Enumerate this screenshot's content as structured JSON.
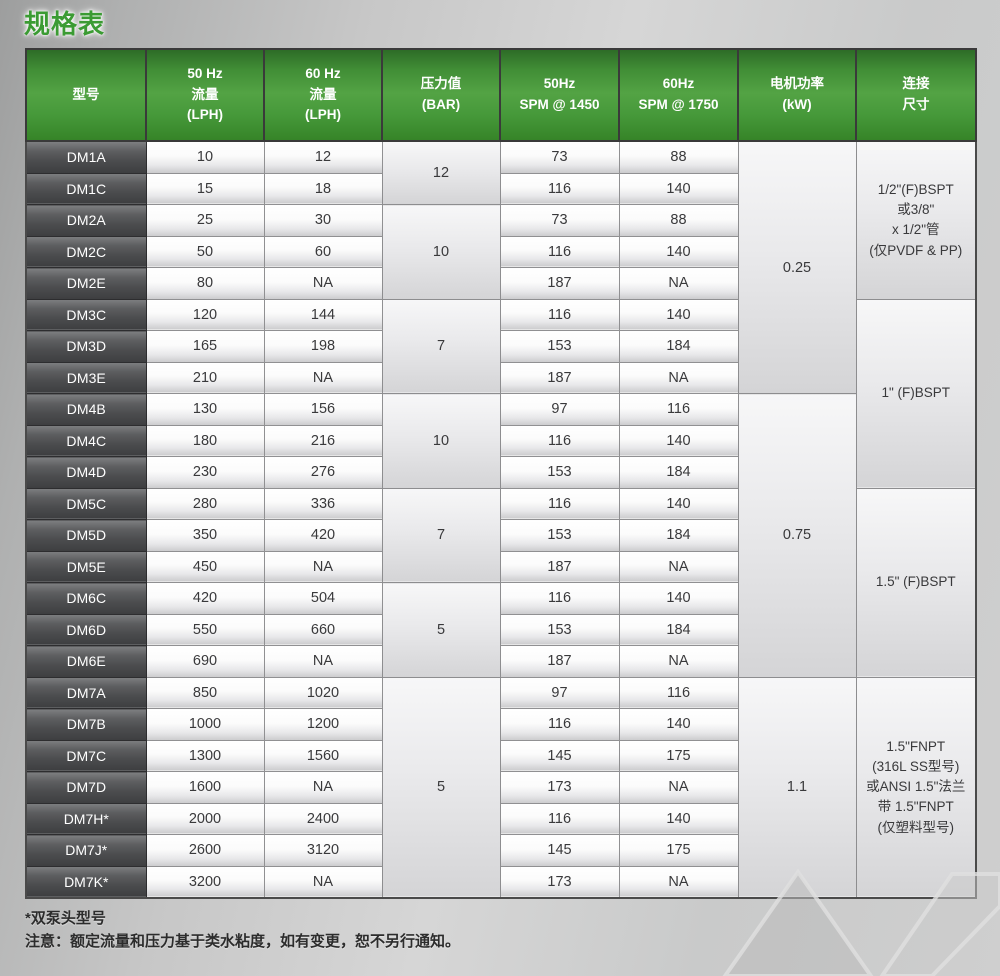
{
  "title": "规格表",
  "colors": {
    "title_green": "#3b9b33",
    "header_green": "#4a9c3c",
    "model_gray": "#4b4c4e"
  },
  "table": {
    "headers": [
      {
        "lines": [
          "型号"
        ]
      },
      {
        "lines": [
          "50 Hz",
          "流量",
          "(LPH)"
        ]
      },
      {
        "lines": [
          "60 Hz",
          "流量",
          "(LPH)"
        ]
      },
      {
        "lines": [
          "压力值",
          "(BAR)"
        ]
      },
      {
        "lines": [
          "50Hz",
          "SPM @ 1450"
        ]
      },
      {
        "lines": [
          "60Hz",
          "SPM @ 1750"
        ]
      },
      {
        "lines": [
          "电机功率",
          "(kW)"
        ]
      },
      {
        "lines": [
          "连接",
          "尺寸"
        ]
      }
    ],
    "rows": [
      {
        "model": "DM1A",
        "flow50_lph": "10",
        "flow60_lph": "12",
        "spm50": "73",
        "spm60": "88"
      },
      {
        "model": "DM1C",
        "flow50_lph": "15",
        "flow60_lph": "18",
        "spm50": "116",
        "spm60": "140"
      },
      {
        "model": "DM2A",
        "flow50_lph": "25",
        "flow60_lph": "30",
        "spm50": "73",
        "spm60": "88"
      },
      {
        "model": "DM2C",
        "flow50_lph": "50",
        "flow60_lph": "60",
        "spm50": "116",
        "spm60": "140"
      },
      {
        "model": "DM2E",
        "flow50_lph": "80",
        "flow60_lph": "NA",
        "spm50": "187",
        "spm60": "NA"
      },
      {
        "model": "DM3C",
        "flow50_lph": "120",
        "flow60_lph": "144",
        "spm50": "116",
        "spm60": "140"
      },
      {
        "model": "DM3D",
        "flow50_lph": "165",
        "flow60_lph": "198",
        "spm50": "153",
        "spm60": "184"
      },
      {
        "model": "DM3E",
        "flow50_lph": "210",
        "flow60_lph": "NA",
        "spm50": "187",
        "spm60": "NA"
      },
      {
        "model": "DM4B",
        "flow50_lph": "130",
        "flow60_lph": "156",
        "spm50": "97",
        "spm60": "116"
      },
      {
        "model": "DM4C",
        "flow50_lph": "180",
        "flow60_lph": "216",
        "spm50": "116",
        "spm60": "140"
      },
      {
        "model": "DM4D",
        "flow50_lph": "230",
        "flow60_lph": "276",
        "spm50": "153",
        "spm60": "184"
      },
      {
        "model": "DM5C",
        "flow50_lph": "280",
        "flow60_lph": "336",
        "spm50": "116",
        "spm60": "140"
      },
      {
        "model": "DM5D",
        "flow50_lph": "350",
        "flow60_lph": "420",
        "spm50": "153",
        "spm60": "184"
      },
      {
        "model": "DM5E",
        "flow50_lph": "450",
        "flow60_lph": "NA",
        "spm50": "187",
        "spm60": "NA"
      },
      {
        "model": "DM6C",
        "flow50_lph": "420",
        "flow60_lph": "504",
        "spm50": "116",
        "spm60": "140"
      },
      {
        "model": "DM6D",
        "flow50_lph": "550",
        "flow60_lph": "660",
        "spm50": "153",
        "spm60": "184"
      },
      {
        "model": "DM6E",
        "flow50_lph": "690",
        "flow60_lph": "NA",
        "spm50": "187",
        "spm60": "NA"
      },
      {
        "model": "DM7A",
        "flow50_lph": "850",
        "flow60_lph": "1020",
        "spm50": "97",
        "spm60": "116"
      },
      {
        "model": "DM7B",
        "flow50_lph": "1000",
        "flow60_lph": "1200",
        "spm50": "116",
        "spm60": "140"
      },
      {
        "model": "DM7C",
        "flow50_lph": "1300",
        "flow60_lph": "1560",
        "spm50": "145",
        "spm60": "175"
      },
      {
        "model": "DM7D",
        "flow50_lph": "1600",
        "flow60_lph": "NA",
        "spm50": "173",
        "spm60": "NA"
      },
      {
        "model": "DM7H*",
        "flow50_lph": "2000",
        "flow60_lph": "2400",
        "spm50": "116",
        "spm60": "140"
      },
      {
        "model": "DM7J*",
        "flow50_lph": "2600",
        "flow60_lph": "3120",
        "spm50": "145",
        "spm60": "175"
      },
      {
        "model": "DM7K*",
        "flow50_lph": "3200",
        "flow60_lph": "NA",
        "spm50": "173",
        "spm60": "NA"
      }
    ],
    "pressure_spans": [
      {
        "start": 0,
        "rows": 2,
        "value": "12"
      },
      {
        "start": 2,
        "rows": 3,
        "value": "10"
      },
      {
        "start": 5,
        "rows": 3,
        "value": "7"
      },
      {
        "start": 8,
        "rows": 3,
        "value": "10"
      },
      {
        "start": 11,
        "rows": 3,
        "value": "7"
      },
      {
        "start": 14,
        "rows": 3,
        "value": "5"
      },
      {
        "start": 17,
        "rows": 7,
        "value": "5"
      }
    ],
    "motor_spans": [
      {
        "start": 0,
        "rows": 8,
        "value": "0.25"
      },
      {
        "start": 8,
        "rows": 9,
        "value": "0.75"
      },
      {
        "start": 17,
        "rows": 7,
        "value": "1.1"
      }
    ],
    "connection_spans": [
      {
        "start": 0,
        "rows": 5,
        "lines": [
          "1/2\"(F)BSPT",
          "或3/8\"",
          "x 1/2\"管",
          "(仅PVDF & PP)"
        ]
      },
      {
        "start": 5,
        "rows": 6,
        "lines": [
          "1\" (F)BSPT"
        ]
      },
      {
        "start": 11,
        "rows": 6,
        "lines": [
          "1.5\" (F)BSPT"
        ]
      },
      {
        "start": 17,
        "rows": 7,
        "lines": [
          "1.5\"FNPT",
          "(316L SS型号)",
          "或ANSI 1.5\"法兰",
          "带 1.5\"FNPT",
          "(仅塑料型号)"
        ]
      }
    ]
  },
  "footnotes": [
    "*双泵头型号",
    "注意：额定流量和压力基于类水粘度，如有变更，恕不另行通知。"
  ]
}
